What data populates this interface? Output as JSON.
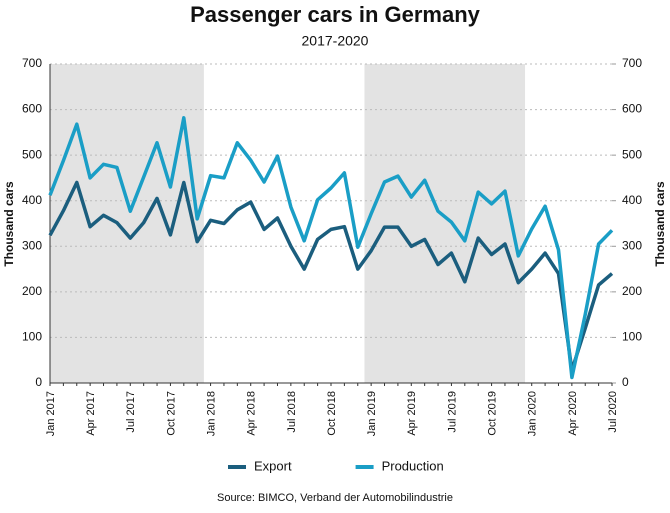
{
  "chart_data": {
    "type": "line",
    "title": "Passenger cars in Germany",
    "subtitle": "2017-2020",
    "ylabel": "Thousand cars",
    "y2label": "Thousand cars",
    "source": "Source: BIMCO, Verband der Automobilindustrie",
    "categories": [
      "Jan 2017",
      null,
      null,
      "Apr 2017",
      null,
      null,
      "Jul 2017",
      null,
      null,
      "Oct 2017",
      null,
      null,
      "Jan 2018",
      null,
      null,
      "Apr 2018",
      null,
      null,
      "Jul 2018",
      null,
      null,
      "Oct 2018",
      null,
      null,
      "Jan 2019",
      null,
      null,
      "Apr 2019",
      null,
      null,
      "Jul 2019",
      null,
      null,
      "Oct 2019",
      null,
      null,
      "Jan 2020",
      null,
      null,
      "Apr 2020",
      null,
      null,
      "Jul 2020"
    ],
    "series": [
      {
        "name": "Export",
        "color": "#1b5e7e",
        "values": [
          324,
          378,
          440,
          343,
          368,
          352,
          318,
          352,
          405,
          325,
          440,
          310,
          357,
          350,
          380,
          397,
          337,
          362,
          300,
          250,
          315,
          337,
          343,
          250,
          290,
          342,
          342,
          300,
          315,
          260,
          285,
          222,
          318,
          282,
          305,
          220,
          250,
          285,
          240,
          28,
          120,
          215,
          240
        ]
      },
      {
        "name": "Production",
        "color": "#1a9ec6",
        "values": [
          412,
          488,
          568,
          450,
          480,
          473,
          377,
          452,
          527,
          430,
          582,
          360,
          455,
          450,
          527,
          489,
          441,
          498,
          386,
          312,
          402,
          428,
          461,
          298,
          371,
          441,
          454,
          408,
          445,
          377,
          353,
          312,
          419,
          393,
          421,
          279,
          338,
          388,
          292,
          12,
          150,
          305,
          335
        ]
      }
    ],
    "shaded_spans": [
      [
        "Jan 2017",
        "Jan 2018"
      ],
      [
        "Jan 2019",
        "Jan 2020"
      ]
    ],
    "shade_color": "#e3e3e3",
    "ylim": [
      0,
      700
    ],
    "yticks": [
      0,
      100,
      200,
      300,
      400,
      500,
      600,
      700
    ],
    "y2lim": [
      0,
      700
    ],
    "y2ticks": [
      0,
      100,
      200,
      300,
      400,
      500,
      600,
      700
    ],
    "grid": true,
    "legend": "bottom"
  }
}
